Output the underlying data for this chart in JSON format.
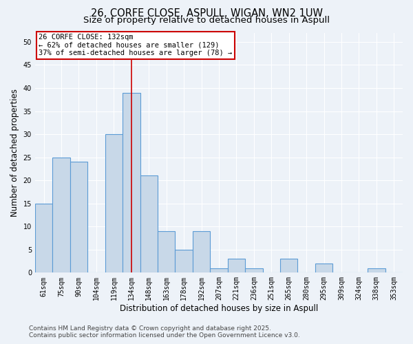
{
  "title_line1": "26, CORFE CLOSE, ASPULL, WIGAN, WN2 1UW",
  "title_line2": "Size of property relative to detached houses in Aspull",
  "xlabel": "Distribution of detached houses by size in Aspull",
  "ylabel": "Number of detached properties",
  "categories": [
    "61sqm",
    "75sqm",
    "90sqm",
    "104sqm",
    "119sqm",
    "134sqm",
    "148sqm",
    "163sqm",
    "178sqm",
    "192sqm",
    "207sqm",
    "221sqm",
    "236sqm",
    "251sqm",
    "265sqm",
    "280sqm",
    "295sqm",
    "309sqm",
    "324sqm",
    "338sqm",
    "353sqm"
  ],
  "values": [
    15,
    25,
    24,
    0,
    30,
    39,
    21,
    9,
    5,
    9,
    1,
    3,
    1,
    0,
    3,
    0,
    2,
    0,
    0,
    1,
    0
  ],
  "bar_color": "#c8d8e8",
  "bar_edge_color": "#5b9bd5",
  "bar_linewidth": 0.8,
  "vline_index": 5,
  "vline_color": "#cc0000",
  "annotation_line1": "26 CORFE CLOSE: 132sqm",
  "annotation_line2": "← 62% of detached houses are smaller (129)",
  "annotation_line3": "37% of semi-detached houses are larger (78) →",
  "annotation_box_color": "#cc0000",
  "ylim": [
    0,
    52
  ],
  "yticks": [
    0,
    5,
    10,
    15,
    20,
    25,
    30,
    35,
    40,
    45,
    50
  ],
  "footnote_line1": "Contains HM Land Registry data © Crown copyright and database right 2025.",
  "footnote_line2": "Contains public sector information licensed under the Open Government Licence v3.0.",
  "bg_color": "#edf2f8",
  "grid_color": "#ffffff",
  "title_fontsize": 10.5,
  "subtitle_fontsize": 9.5,
  "axis_label_fontsize": 8.5,
  "tick_fontsize": 7,
  "annotation_fontsize": 7.5,
  "footnote_fontsize": 6.5
}
